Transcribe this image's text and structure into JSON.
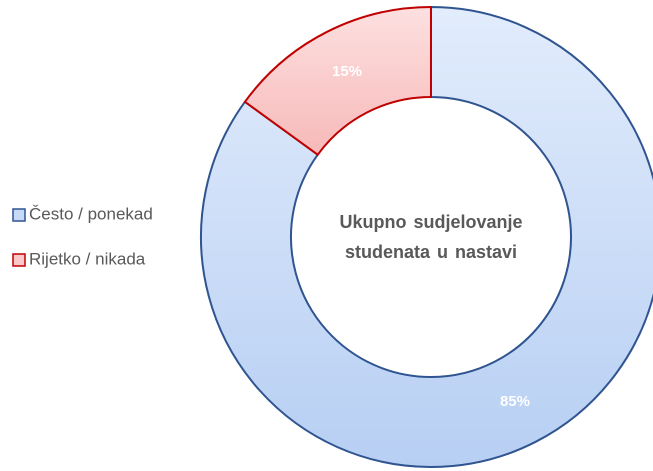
{
  "chart_data": {
    "type": "donut",
    "title": "Ukupno sudjelovanje studenata u nastavi",
    "categories": [
      "Često / ponekad",
      "Rijetko / nikada"
    ],
    "values": [
      85,
      15
    ],
    "value_labels": [
      "85%",
      "15%"
    ],
    "colors": [
      "#c6d9f6",
      "#fac8c8"
    ],
    "edge_colors": [
      "#2f5490",
      "#c00000"
    ],
    "legend": "left"
  }
}
